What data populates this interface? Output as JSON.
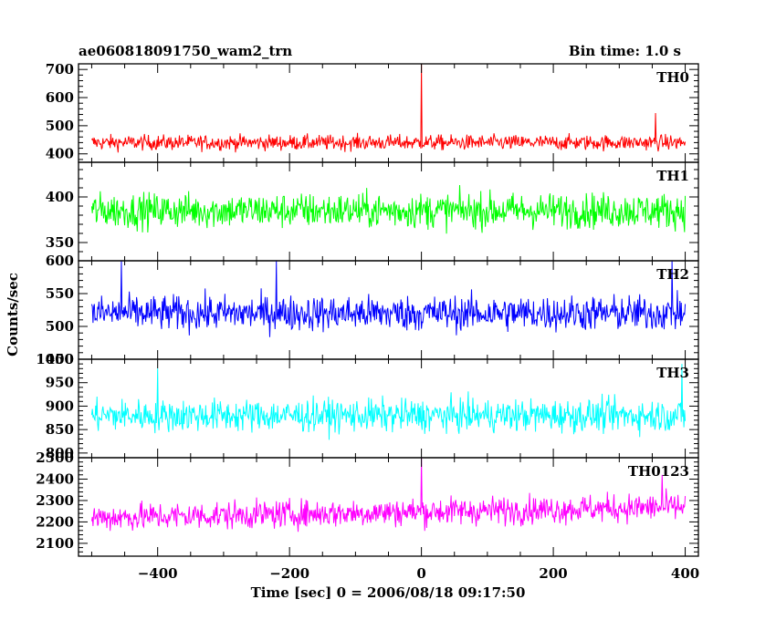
{
  "header": {
    "title": "ae060818091750_wam2_trn",
    "bin_time": "Bin time: 1.0 s"
  },
  "chart_data": {
    "type": "line",
    "title": "ae060818091750_wam2_trn",
    "xlabel": "Time [sec] 0 = 2006/08/18 09:17:50",
    "ylabel": "Counts/sec",
    "xlim": [
      -520,
      420
    ],
    "x_ticks": [
      -400,
      -200,
      0,
      200,
      400
    ],
    "x_range": [
      -500,
      400
    ],
    "bin": 1.0,
    "panels": [
      {
        "name": "TH0",
        "color": "#ff0000",
        "ylim": [
          370,
          720
        ],
        "y_ticks": [
          400,
          500,
          600,
          700
        ],
        "mean": 440,
        "amplitude": 35,
        "spikes": [
          {
            "x": 0,
            "value": 720
          },
          {
            "x": 355,
            "value": 545
          }
        ]
      },
      {
        "name": "TH1",
        "color": "#00ff00",
        "ylim": [
          330,
          438
        ],
        "y_ticks": [
          350,
          400
        ],
        "mean": 385,
        "amplitude": 25,
        "spikes": []
      },
      {
        "name": "TH2",
        "color": "#0000ff",
        "ylim": [
          450,
          600
        ],
        "y_ticks": [
          450,
          500,
          550,
          600
        ],
        "mean": 520,
        "amplitude": 35,
        "spikes": [
          {
            "x": -455,
            "value": 600
          },
          {
            "x": -220,
            "value": 600
          },
          {
            "x": 380,
            "value": 600
          }
        ]
      },
      {
        "name": "TH3",
        "color": "#00ffff",
        "ylim": [
          790,
          1000
        ],
        "y_ticks": [
          800,
          850,
          900,
          950,
          1000
        ],
        "mean": 880,
        "amplitude": 45,
        "spikes": [
          {
            "x": 395,
            "value": 990
          },
          {
            "x": -400,
            "value": 980
          }
        ]
      },
      {
        "name": "TH0123",
        "color": "#ff00ff",
        "ylim": [
          2040,
          2500
        ],
        "y_ticks": [
          2100,
          2200,
          2300,
          2400,
          2500
        ],
        "mean": 2220,
        "amplitude": 85,
        "trend_end": 2270,
        "spikes": [
          {
            "x": 0,
            "value": 2500
          },
          {
            "x": 365,
            "value": 2420
          }
        ]
      }
    ]
  }
}
